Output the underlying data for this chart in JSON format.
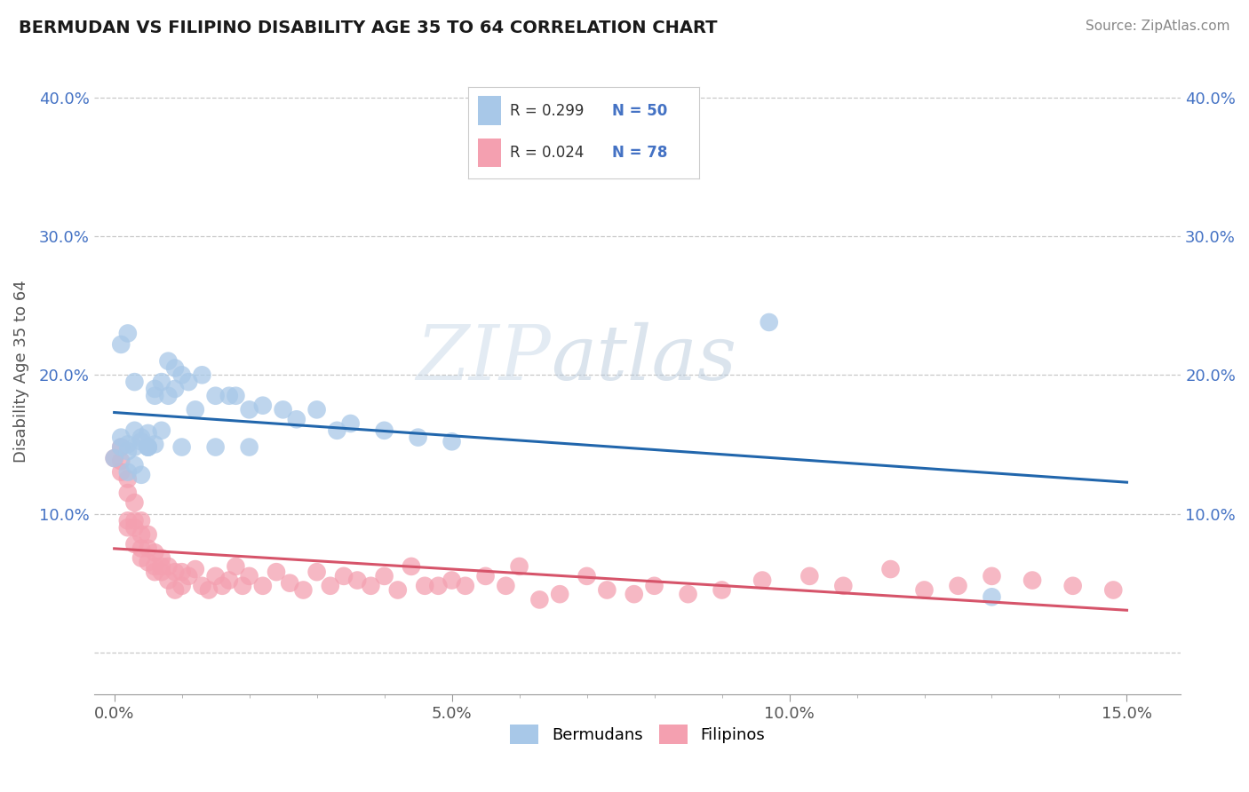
{
  "title": "BERMUDAN VS FILIPINO DISABILITY AGE 35 TO 64 CORRELATION CHART",
  "source": "Source: ZipAtlas.com",
  "ylabel": "Disability Age 35 to 64",
  "xlim": [
    -0.003,
    0.158
  ],
  "ylim": [
    -0.03,
    0.435
  ],
  "bermudan_color": "#a8c8e8",
  "filipino_color": "#f4a0b0",
  "bermudan_line_color": "#2166ac",
  "filipino_line_color": "#d6546a",
  "bermudan_R": 0.299,
  "bermudan_N": 50,
  "filipino_R": 0.024,
  "filipino_N": 78,
  "legend_label_blue": "Bermudans",
  "legend_label_pink": "Filipinos",
  "watermark_zip": "ZIP",
  "watermark_atlas": "atlas",
  "background_color": "#ffffff",
  "grid_color": "#c8c8c8",
  "bermudan_x": [
    0.0,
    0.001,
    0.001,
    0.002,
    0.002,
    0.002,
    0.003,
    0.003,
    0.003,
    0.004,
    0.004,
    0.004,
    0.005,
    0.005,
    0.005,
    0.005,
    0.006,
    0.006,
    0.007,
    0.007,
    0.008,
    0.009,
    0.009,
    0.01,
    0.011,
    0.012,
    0.013,
    0.015,
    0.017,
    0.018,
    0.02,
    0.022,
    0.025,
    0.027,
    0.03,
    0.033,
    0.035,
    0.04,
    0.045,
    0.05,
    0.001,
    0.002,
    0.003,
    0.006,
    0.008,
    0.01,
    0.015,
    0.02,
    0.097,
    0.13
  ],
  "bermudan_y": [
    0.14,
    0.148,
    0.155,
    0.13,
    0.145,
    0.15,
    0.135,
    0.148,
    0.16,
    0.128,
    0.152,
    0.155,
    0.148,
    0.158,
    0.148,
    0.148,
    0.15,
    0.185,
    0.16,
    0.195,
    0.185,
    0.19,
    0.205,
    0.2,
    0.195,
    0.175,
    0.2,
    0.185,
    0.185,
    0.185,
    0.175,
    0.178,
    0.175,
    0.168,
    0.175,
    0.16,
    0.165,
    0.16,
    0.155,
    0.152,
    0.222,
    0.23,
    0.195,
    0.19,
    0.21,
    0.148,
    0.148,
    0.148,
    0.238,
    0.04
  ],
  "filipino_x": [
    0.0,
    0.001,
    0.001,
    0.001,
    0.002,
    0.002,
    0.002,
    0.002,
    0.003,
    0.003,
    0.003,
    0.003,
    0.004,
    0.004,
    0.004,
    0.004,
    0.005,
    0.005,
    0.005,
    0.006,
    0.006,
    0.006,
    0.007,
    0.007,
    0.007,
    0.008,
    0.008,
    0.009,
    0.009,
    0.01,
    0.01,
    0.011,
    0.012,
    0.013,
    0.014,
    0.015,
    0.016,
    0.017,
    0.018,
    0.019,
    0.02,
    0.022,
    0.024,
    0.026,
    0.028,
    0.03,
    0.032,
    0.034,
    0.036,
    0.038,
    0.04,
    0.042,
    0.044,
    0.046,
    0.048,
    0.05,
    0.052,
    0.055,
    0.058,
    0.06,
    0.063,
    0.066,
    0.07,
    0.073,
    0.077,
    0.08,
    0.085,
    0.09,
    0.096,
    0.103,
    0.108,
    0.115,
    0.12,
    0.125,
    0.13,
    0.136,
    0.142,
    0.148
  ],
  "filipino_y": [
    0.14,
    0.138,
    0.148,
    0.13,
    0.125,
    0.115,
    0.095,
    0.09,
    0.095,
    0.09,
    0.078,
    0.108,
    0.085,
    0.075,
    0.068,
    0.095,
    0.085,
    0.075,
    0.065,
    0.072,
    0.062,
    0.058,
    0.068,
    0.062,
    0.058,
    0.052,
    0.062,
    0.058,
    0.045,
    0.058,
    0.048,
    0.055,
    0.06,
    0.048,
    0.045,
    0.055,
    0.048,
    0.052,
    0.062,
    0.048,
    0.055,
    0.048,
    0.058,
    0.05,
    0.045,
    0.058,
    0.048,
    0.055,
    0.052,
    0.048,
    0.055,
    0.045,
    0.062,
    0.048,
    0.048,
    0.052,
    0.048,
    0.055,
    0.048,
    0.062,
    0.038,
    0.042,
    0.055,
    0.045,
    0.042,
    0.048,
    0.042,
    0.045,
    0.052,
    0.055,
    0.048,
    0.06,
    0.045,
    0.048,
    0.055,
    0.052,
    0.048,
    0.045
  ]
}
